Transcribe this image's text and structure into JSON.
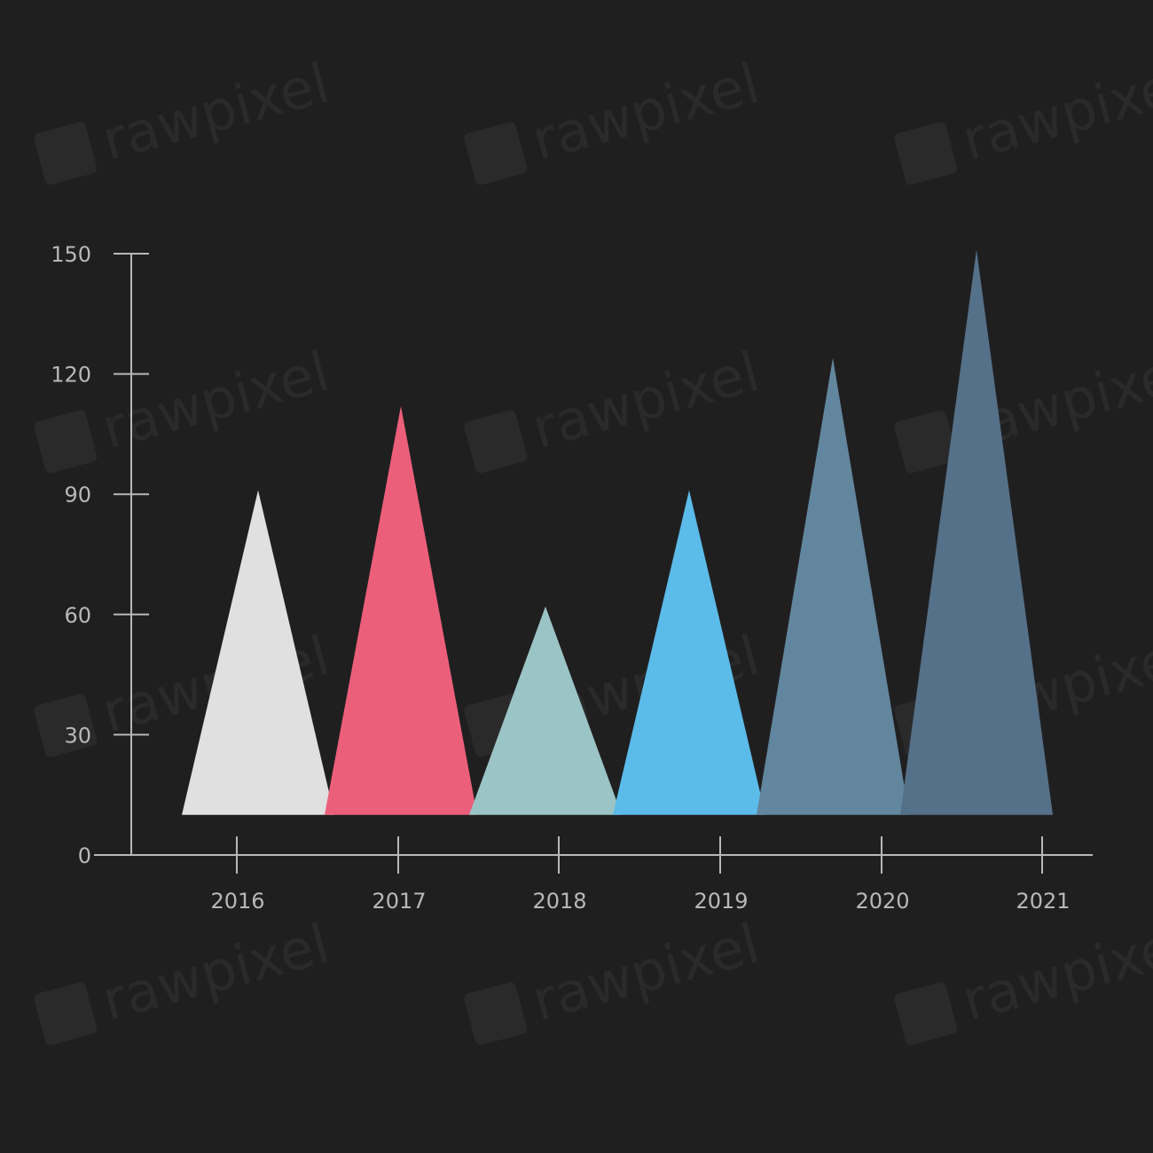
{
  "watermark": "rawpixel",
  "chart_data": {
    "type": "bar",
    "mark_shape": "triangle",
    "title": "",
    "xlabel": "",
    "ylabel": "",
    "categories": [
      "2016",
      "2017",
      "2018",
      "2019",
      "2020",
      "2021"
    ],
    "values": [
      91,
      112,
      62,
      91,
      124,
      151
    ],
    "base_value": 10,
    "colors": [
      "#e0e0e0",
      "#ec5f7a",
      "#9bc4c6",
      "#5bbbe9",
      "#62869e",
      "#557189"
    ],
    "ylim": [
      0,
      150
    ],
    "yticks": [
      "0",
      "30",
      "60",
      "90",
      "120",
      "150"
    ],
    "grid": false,
    "legend": "none",
    "background": "#201f20",
    "axis_color": "#b8b8b8"
  }
}
